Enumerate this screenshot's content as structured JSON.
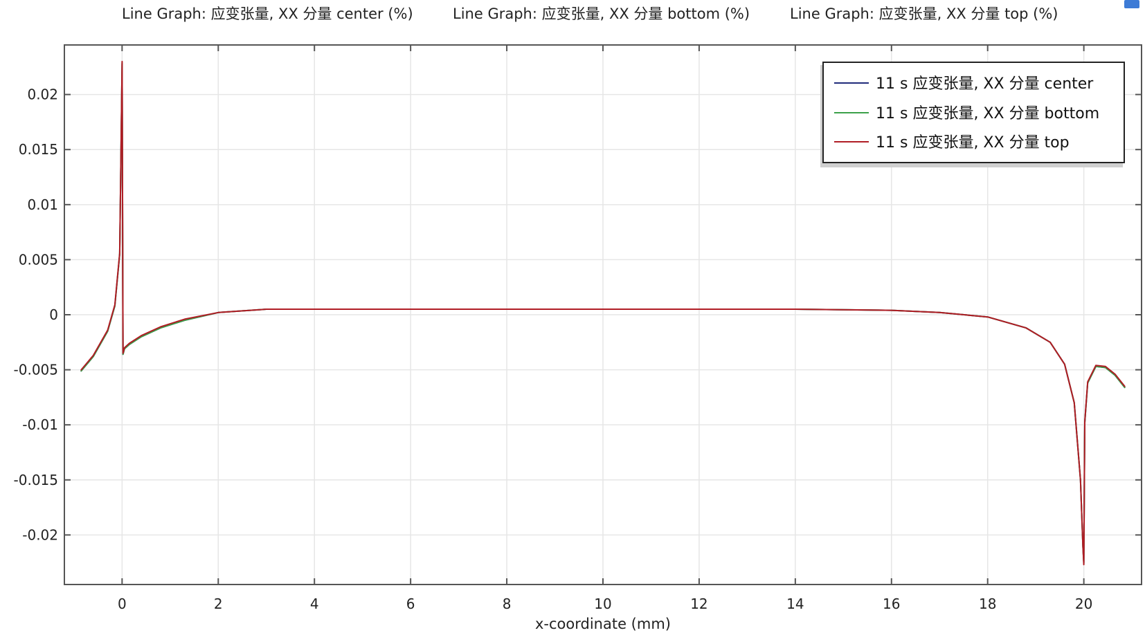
{
  "chart_data": {
    "type": "line",
    "title_parts": [
      "Line Graph: 应变张量, XX 分量 center (%)",
      "Line Graph: 应变张量, XX 分量 bottom (%)",
      "Line Graph: 应变张量, XX 分量 top (%)"
    ],
    "xlabel": "x-coordinate (mm)",
    "ylabel": "",
    "xlim": [
      -1.2,
      21.2
    ],
    "ylim": [
      -0.0245,
      0.0245
    ],
    "xticks": [
      0,
      2,
      4,
      6,
      8,
      10,
      12,
      14,
      16,
      18,
      20
    ],
    "xtick_labels": [
      "0",
      "2",
      "4",
      "6",
      "8",
      "10",
      "12",
      "14",
      "16",
      "18",
      "20"
    ],
    "yticks": [
      0.02,
      0.015,
      0.01,
      0.005,
      0,
      -0.005,
      -0.01,
      -0.015,
      -0.02
    ],
    "ytick_labels": [
      "0.02",
      "0.015",
      "0.01",
      "0.005",
      "0",
      "-0.005",
      "-0.01",
      "-0.015",
      "-0.02"
    ],
    "grid": true,
    "legend_position": "top-right",
    "series": [
      {
        "name": "11 s 应变张量, XX 分量 center",
        "color": "#1f2a7a",
        "x": [
          -0.85,
          -0.6,
          -0.3,
          -0.15,
          -0.05,
          0.0,
          0.02,
          0.05,
          0.15,
          0.4,
          0.8,
          1.3,
          2.0,
          3.0,
          4.0,
          6.0,
          8.0,
          10.0,
          12.0,
          14.0,
          16.0,
          17.0,
          18.0,
          18.8,
          19.3,
          19.6,
          19.8,
          19.93,
          19.98,
          20.0,
          20.02,
          20.08,
          20.25,
          20.45,
          20.65,
          20.85
        ],
        "y": [
          -0.0051,
          -0.0038,
          -0.0015,
          0.0008,
          0.0055,
          0.0228,
          -0.0036,
          -0.0031,
          -0.0027,
          -0.002,
          -0.0012,
          -0.0005,
          0.0002,
          0.0005,
          0.0005,
          0.0005,
          0.0005,
          0.0005,
          0.0005,
          0.0005,
          0.0004,
          0.0002,
          -0.0002,
          -0.0012,
          -0.0025,
          -0.0045,
          -0.008,
          -0.015,
          -0.021,
          -0.0225,
          -0.0098,
          -0.0062,
          -0.0047,
          -0.0048,
          -0.0055,
          -0.0066
        ]
      },
      {
        "name": "11 s 应变张量, XX 分量 bottom",
        "color": "#3aa048",
        "x": [
          -0.85,
          -0.6,
          -0.3,
          -0.15,
          -0.05,
          0.0,
          0.02,
          0.05,
          0.15,
          0.4,
          0.8,
          1.3,
          2.0,
          3.0,
          4.0,
          6.0,
          8.0,
          10.0,
          12.0,
          14.0,
          16.0,
          17.0,
          18.0,
          18.8,
          19.3,
          19.6,
          19.8,
          19.93,
          19.98,
          20.0,
          20.02,
          20.08,
          20.25,
          20.45,
          20.65,
          20.85
        ],
        "y": [
          -0.0051,
          -0.0038,
          -0.0015,
          0.0008,
          0.0055,
          0.0229,
          -0.0036,
          -0.0031,
          -0.0027,
          -0.002,
          -0.0012,
          -0.0005,
          0.0002,
          0.0005,
          0.0005,
          0.0005,
          0.0005,
          0.0005,
          0.0005,
          0.0005,
          0.0004,
          0.0002,
          -0.0002,
          -0.0012,
          -0.0025,
          -0.0045,
          -0.008,
          -0.015,
          -0.021,
          -0.0226,
          -0.0098,
          -0.0062,
          -0.0047,
          -0.0048,
          -0.0055,
          -0.0066
        ]
      },
      {
        "name": "11 s 应变张量, XX 分量 top",
        "color": "#b01c24",
        "x": [
          -0.85,
          -0.6,
          -0.3,
          -0.15,
          -0.05,
          0.0,
          0.02,
          0.05,
          0.15,
          0.4,
          0.8,
          1.3,
          2.0,
          3.0,
          4.0,
          6.0,
          8.0,
          10.0,
          12.0,
          14.0,
          16.0,
          17.0,
          18.0,
          18.8,
          19.3,
          19.6,
          19.8,
          19.93,
          19.98,
          20.0,
          20.02,
          20.08,
          20.25,
          20.45,
          20.65,
          20.85
        ],
        "y": [
          -0.005,
          -0.0037,
          -0.0014,
          0.0009,
          0.0056,
          0.023,
          -0.0035,
          -0.003,
          -0.0026,
          -0.0019,
          -0.0011,
          -0.0004,
          0.0002,
          0.0005,
          0.0005,
          0.0005,
          0.0005,
          0.0005,
          0.0005,
          0.0005,
          0.0004,
          0.0002,
          -0.0002,
          -0.0012,
          -0.0025,
          -0.0045,
          -0.008,
          -0.015,
          -0.021,
          -0.0227,
          -0.0097,
          -0.0061,
          -0.0046,
          -0.0047,
          -0.0054,
          -0.0065
        ]
      }
    ]
  }
}
